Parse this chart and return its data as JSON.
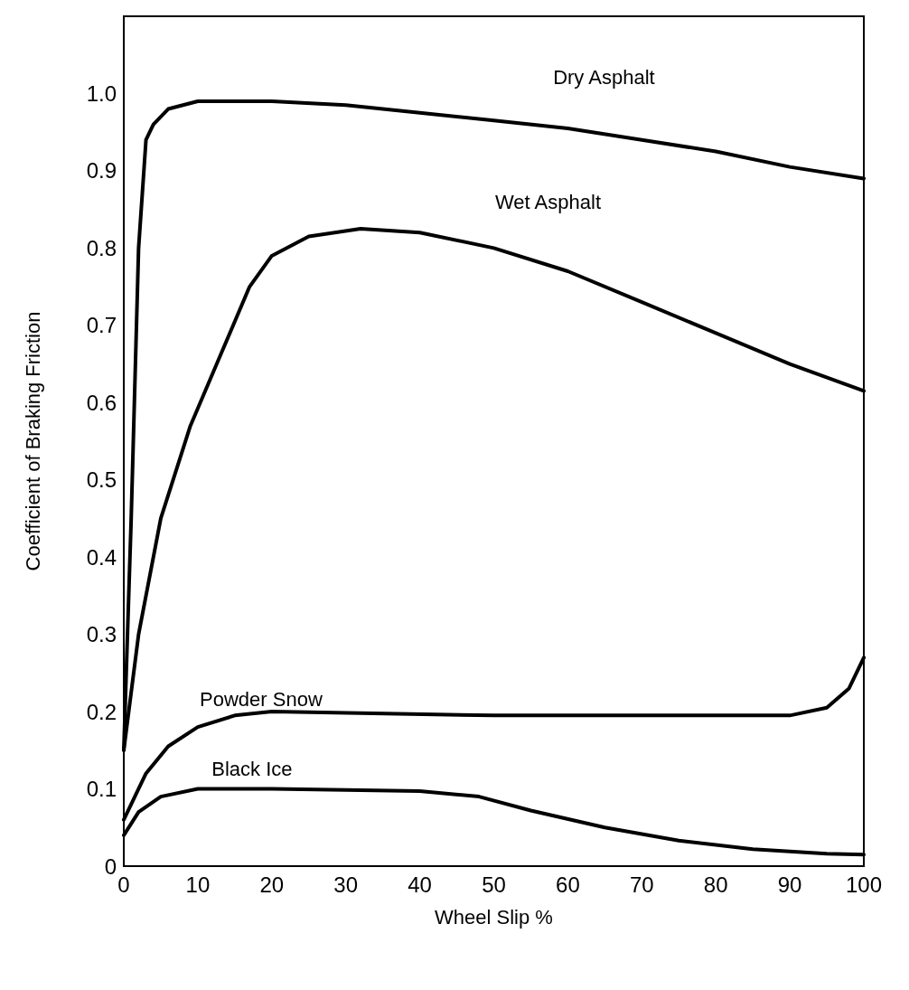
{
  "chart_data": {
    "type": "line",
    "xlabel": "Wheel Slip %",
    "ylabel": "Coefficient of Braking Friction",
    "xlim": [
      0,
      100
    ],
    "ylim": [
      0,
      1.1
    ],
    "xticks": [
      0,
      10,
      20,
      30,
      40,
      50,
      60,
      70,
      80,
      90,
      100
    ],
    "yticks": [
      0,
      0.1,
      0.2,
      0.3,
      0.4,
      0.5,
      0.6,
      0.7,
      0.8,
      0.9,
      {
        "value": 1,
        "label": "1.0"
      }
    ],
    "grid": false,
    "legend": false,
    "marker": "none",
    "line_style": "solid",
    "series": [
      {
        "name": "Dry Asphalt",
        "color": "#000000",
        "x": [
          0,
          1,
          2,
          3,
          4,
          6,
          10,
          20,
          30,
          40,
          50,
          60,
          70,
          80,
          90,
          100
        ],
        "values": [
          0.15,
          0.45,
          0.8,
          0.94,
          0.96,
          0.98,
          0.99,
          0.99,
          0.985,
          0.975,
          0.965,
          0.955,
          0.94,
          0.925,
          0.905,
          0.89
        ]
      },
      {
        "name": "Wet Asphalt",
        "color": "#000000",
        "x": [
          0,
          2,
          5,
          9,
          13,
          17,
          20,
          25,
          32,
          40,
          50,
          60,
          70,
          80,
          90,
          100
        ],
        "values": [
          0.15,
          0.3,
          0.45,
          0.57,
          0.66,
          0.75,
          0.79,
          0.815,
          0.825,
          0.82,
          0.8,
          0.77,
          0.73,
          0.69,
          0.65,
          0.615
        ]
      },
      {
        "name": "Powder Snow",
        "color": "#000000",
        "x": [
          0,
          3,
          6,
          10,
          15,
          20,
          50,
          90,
          95,
          98,
          100
        ],
        "values": [
          0.06,
          0.12,
          0.155,
          0.18,
          0.195,
          0.2,
          0.195,
          0.195,
          0.205,
          0.23,
          0.27
        ]
      },
      {
        "name": "Black Ice",
        "color": "#000000",
        "x": [
          0,
          2,
          5,
          10,
          20,
          40,
          48,
          55,
          65,
          75,
          85,
          95,
          100
        ],
        "values": [
          0.04,
          0.07,
          0.09,
          0.1,
          0.1,
          0.097,
          0.09,
          0.072,
          0.05,
          0.033,
          0.022,
          0.016,
          0.015
        ]
      }
    ]
  }
}
